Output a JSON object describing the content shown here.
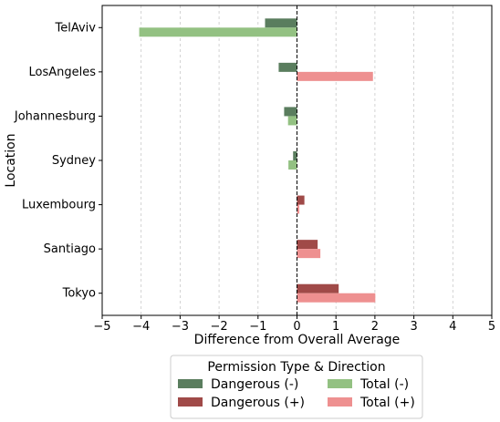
{
  "chart_data": {
    "type": "bar",
    "orientation": "horizontal",
    "categories": [
      "TelAviv",
      "LosAngeles",
      "Johannesburg",
      "Sydney",
      "Luxembourg",
      "Santiago",
      "Tokyo"
    ],
    "series": [
      {
        "name": "Dangerous (-)",
        "color": "#5a7d5e",
        "values": [
          -0.82,
          -0.47,
          -0.33,
          -0.1,
          null,
          null,
          null
        ]
      },
      {
        "name": "Total (-)",
        "color": "#93c182",
        "values": [
          -4.05,
          null,
          -0.23,
          -0.22,
          null,
          null,
          null
        ]
      },
      {
        "name": "Dangerous (+)",
        "color": "#a04a48",
        "values": [
          null,
          null,
          null,
          null,
          0.19,
          0.53,
          1.07
        ]
      },
      {
        "name": "Total (+)",
        "color": "#ee9090",
        "values": [
          null,
          1.95,
          null,
          null,
          0.06,
          0.6,
          2.01
        ]
      }
    ],
    "xlabel": "Difference from Overall Average",
    "ylabel": "Location",
    "xlim": [
      -5,
      5
    ],
    "xticks": [
      -5,
      -4,
      -3,
      -2,
      -1,
      0,
      1,
      2,
      3,
      4,
      5
    ],
    "grid": "vertical-dashed",
    "reference_line": 0,
    "legend": {
      "title": "Permission Type & Direction",
      "placement": "below",
      "entries": [
        {
          "label": "Dangerous (-)",
          "color": "#5a7d5e"
        },
        {
          "label": "Total (-)",
          "color": "#93c182"
        },
        {
          "label": "Dangerous (+)",
          "color": "#a04a48"
        },
        {
          "label": "Total (+)",
          "color": "#ee9090"
        }
      ]
    }
  }
}
